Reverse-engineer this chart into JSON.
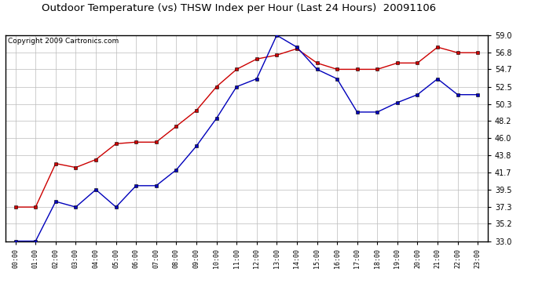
{
  "title": "Outdoor Temperature (vs) THSW Index per Hour (Last 24 Hours)  20091106",
  "copyright": "Copyright 2009 Cartronics.com",
  "hours": [
    "00:00",
    "01:00",
    "02:00",
    "03:00",
    "04:00",
    "05:00",
    "06:00",
    "07:00",
    "08:00",
    "09:00",
    "10:00",
    "11:00",
    "12:00",
    "13:00",
    "14:00",
    "15:00",
    "16:00",
    "17:00",
    "18:00",
    "19:00",
    "20:00",
    "21:00",
    "22:00",
    "23:00"
  ],
  "temp_blue": [
    33.0,
    33.0,
    38.0,
    37.3,
    39.5,
    37.3,
    40.0,
    40.0,
    42.0,
    45.0,
    48.5,
    52.5,
    53.5,
    59.0,
    57.5,
    54.7,
    53.5,
    49.3,
    49.3,
    50.5,
    51.5,
    53.5,
    51.5,
    51.5
  ],
  "thsw_red": [
    37.3,
    37.3,
    42.8,
    42.3,
    43.3,
    45.3,
    45.5,
    45.5,
    47.5,
    49.5,
    52.5,
    54.7,
    56.0,
    56.5,
    57.3,
    55.5,
    54.7,
    54.7,
    54.7,
    55.5,
    55.5,
    57.5,
    56.8,
    56.8
  ],
  "ylim": [
    33.0,
    59.0
  ],
  "yticks": [
    33.0,
    35.2,
    37.3,
    39.5,
    41.7,
    43.8,
    46.0,
    48.2,
    50.3,
    52.5,
    54.7,
    56.8,
    59.0
  ],
  "blue_color": "#0000bb",
  "red_color": "#cc0000",
  "bg_color": "#ffffff",
  "grid_color": "#bbbbbb",
  "title_fontsize": 9.5,
  "copyright_fontsize": 6.5
}
